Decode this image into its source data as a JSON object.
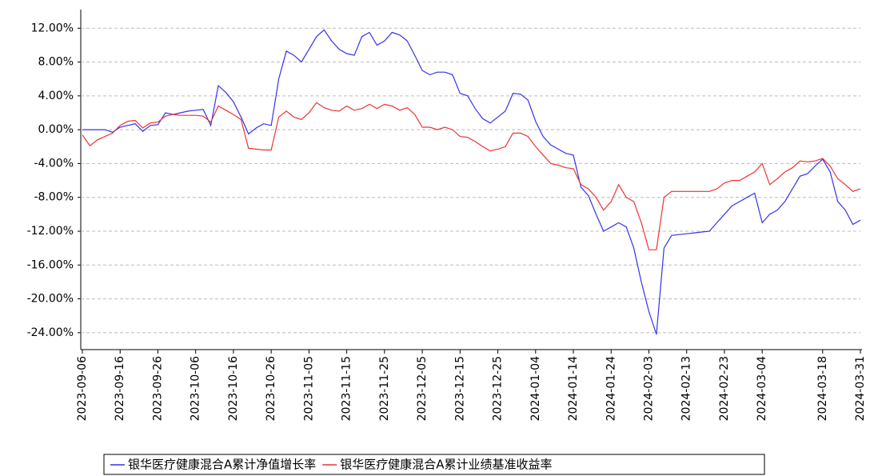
{
  "chart_data": {
    "type": "line",
    "categories": [
      "2023-09-06",
      null,
      null,
      null,
      null,
      "2023-09-16",
      null,
      null,
      null,
      null,
      "2023-09-26",
      null,
      null,
      null,
      null,
      "2023-10-06",
      null,
      null,
      null,
      null,
      "2023-10-16",
      null,
      null,
      null,
      null,
      "2023-10-26",
      null,
      null,
      null,
      null,
      "2023-11-05",
      null,
      null,
      null,
      null,
      "2023-11-15",
      null,
      null,
      null,
      null,
      "2023-11-25",
      null,
      null,
      null,
      null,
      "2023-12-05",
      null,
      null,
      null,
      null,
      "2023-12-15",
      null,
      null,
      null,
      null,
      "2023-12-25",
      null,
      null,
      null,
      null,
      "2024-01-04",
      null,
      null,
      null,
      null,
      "2024-01-14",
      null,
      null,
      null,
      null,
      "2024-01-24",
      null,
      null,
      null,
      null,
      "2024-02-03",
      null,
      null,
      null,
      null,
      "2024-02-13",
      null,
      null,
      null,
      null,
      "2024-02-23",
      null,
      null,
      null,
      null,
      "2024-03-04",
      null,
      null,
      null,
      null,
      null,
      null,
      null,
      "2024-03-18",
      null,
      null,
      null,
      null,
      "2024-03-31"
    ],
    "series": [
      {
        "name": "银华医疗健康混合A累计净值增长率",
        "color": "#3333ee",
        "values": [
          0,
          0,
          0,
          0,
          -0.3,
          0.3,
          0.5,
          0.7,
          -0.2,
          0.5,
          0.6,
          2.0,
          1.8,
          2.0,
          2.2,
          2.3,
          2.4,
          0.5,
          5.2,
          4.4,
          3.3,
          1.5,
          -0.5,
          0.2,
          0.7,
          0.5,
          6.0,
          9.3,
          8.8,
          8.0,
          9.5,
          11.0,
          11.8,
          10.5,
          9.5,
          9.0,
          8.8,
          11.0,
          11.5,
          10.0,
          10.5,
          11.5,
          11.2,
          10.5,
          8.8,
          7.0,
          6.5,
          6.8,
          6.8,
          6.5,
          4.3,
          4.0,
          2.5,
          1.3,
          0.8,
          1.5,
          2.2,
          4.3,
          4.2,
          3.5,
          1.0,
          -0.8,
          -1.8,
          -2.3,
          -2.8,
          -3.0,
          -6.8,
          -7.8,
          -10.0,
          -12.0,
          -11.5,
          -11.0,
          -11.5,
          -14.0,
          -18.0,
          -21.5,
          -24.2,
          -14.0,
          -12.5,
          -12.4,
          -12.3,
          -12.2,
          -12.1,
          -12.0,
          -11.0,
          -10.0,
          -9.0,
          -8.5,
          -8.0,
          -7.5,
          -11.0,
          -10.0,
          -9.5,
          -8.5,
          -7.0,
          -5.5,
          -5.2,
          -4.3,
          -3.5,
          -5.0,
          -8.5,
          -9.5,
          -11.2,
          -10.7
        ]
      },
      {
        "name": "银华医疗健康混合A累计业绩基准收益率",
        "color": "#ee3333",
        "values": [
          -0.6,
          -1.9,
          -1.2,
          -0.8,
          -0.4,
          0.5,
          1.0,
          1.1,
          0.2,
          0.8,
          0.9,
          1.6,
          1.8,
          1.7,
          1.7,
          1.7,
          1.6,
          0.9,
          2.8,
          2.3,
          1.8,
          1.2,
          -2.2,
          -2.3,
          -2.4,
          -2.4,
          1.5,
          2.2,
          1.5,
          1.2,
          2.0,
          3.2,
          2.6,
          2.3,
          2.2,
          2.8,
          2.3,
          2.5,
          3.0,
          2.5,
          3.0,
          2.8,
          2.3,
          2.6,
          1.8,
          0.3,
          0.3,
          0.0,
          0.3,
          0.0,
          -0.8,
          -0.9,
          -1.4,
          -2.0,
          -2.5,
          -2.3,
          -2.0,
          -0.4,
          -0.4,
          -0.8,
          -2.0,
          -3.0,
          -4.0,
          -4.2,
          -4.5,
          -4.6,
          -6.5,
          -7.0,
          -8.0,
          -9.5,
          -8.5,
          -6.5,
          -8.0,
          -8.5,
          -11.0,
          -14.2,
          -14.2,
          -8.0,
          -7.3,
          -7.3,
          -7.3,
          -7.3,
          -7.3,
          -7.3,
          -7.0,
          -6.3,
          -6.0,
          -6.0,
          -5.5,
          -5.0,
          -4.0,
          -6.5,
          -5.8,
          -5.0,
          -4.5,
          -3.7,
          -3.8,
          -3.7,
          -3.4,
          -4.3,
          -5.8,
          -6.5,
          -7.3,
          -7.0
        ]
      }
    ],
    "ylim": [
      -26,
      14.2
    ],
    "yticks": [
      {
        "value": 12,
        "label": "12.00%"
      },
      {
        "value": 8,
        "label": "8.00%"
      },
      {
        "value": 4,
        "label": "4.00%"
      },
      {
        "value": 0,
        "label": "0.00%"
      },
      {
        "value": -4,
        "label": "-4.00%"
      },
      {
        "value": -8,
        "label": "-8.00%"
      },
      {
        "value": -12,
        "label": "-12.00%"
      },
      {
        "value": -16,
        "label": "-16.00%"
      },
      {
        "value": -20,
        "label": "-20.00%"
      },
      {
        "value": -24,
        "label": "-24.00%"
      }
    ],
    "grid": true
  }
}
